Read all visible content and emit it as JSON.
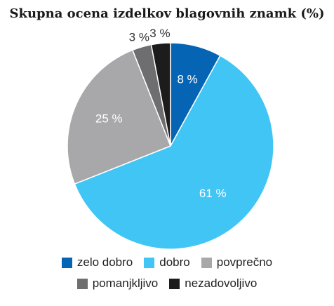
{
  "chart_data": {
    "type": "pie",
    "title": "Skupna ocena izdelkov blagovnih znamk (%)",
    "categories": [
      "zelo dobro",
      "dobro",
      "povprečno",
      "pomanjkljivo",
      "nezadovoljivo"
    ],
    "values": [
      8,
      61,
      25,
      3,
      3
    ],
    "labels": [
      "8 %",
      "61 %",
      "25 %",
      "3 %",
      "3 %"
    ],
    "colors": [
      "#0565b4",
      "#41c5f4",
      "#a8a8ab",
      "#6e6e70",
      "#1c1c1c"
    ],
    "legend_position": "bottom"
  }
}
